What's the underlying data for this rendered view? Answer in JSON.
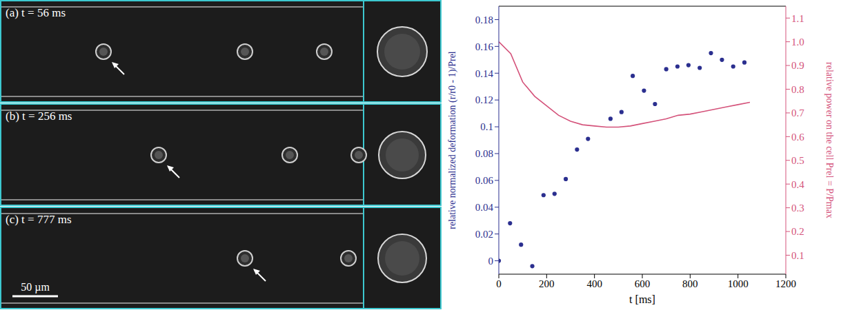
{
  "panels": [
    {
      "label": "(a) t = 56 ms"
    },
    {
      "label": "(b) t = 256 ms"
    },
    {
      "label": "(c) t = 777 ms"
    }
  ],
  "scale_bar": "50 µm",
  "chart_data": {
    "type": "scatter",
    "xlabel": "t [ms]",
    "ylabel": "relative normalized deformation (r/r0 - 1)/Prel",
    "y2label": "relative power on the cell Prel = P/Pmax",
    "xlim": [
      0,
      1200
    ],
    "xticks": [
      0,
      200,
      400,
      600,
      800,
      1000,
      1200
    ],
    "ylim": [
      -0.01,
      0.19
    ],
    "yticks": [
      0,
      0.02,
      0.04,
      0.06,
      0.08,
      0.1,
      0.12,
      0.14,
      0.16,
      0.18
    ],
    "y2lim": [
      0.02,
      1.15
    ],
    "y2ticks": [
      0.1,
      0.2,
      0.3,
      0.4,
      0.5,
      0.6,
      0.7,
      0.8,
      0.9,
      {
        "value": 1,
        "label": "1.0"
      },
      1.1
    ],
    "series": [
      {
        "type": "scatter",
        "color": "#2b2f8f",
        "marker": "circle",
        "x": [
          0,
          47,
          93,
          140,
          187,
          233,
          280,
          327,
          373,
          467,
          513,
          560,
          607,
          653,
          700,
          747,
          793,
          840,
          887,
          933,
          980,
          1027
        ],
        "values": [
          0,
          0.028,
          0.012,
          -0.004,
          0.049,
          0.05,
          0.061,
          0.083,
          0.091,
          0.106,
          0.111,
          0.138,
          0.127,
          0.117,
          0.143,
          0.145,
          0.146,
          0.144,
          0.155,
          0.15,
          0.145,
          0.148
        ]
      },
      {
        "type": "line",
        "axis": "y2",
        "color": "#d4527a",
        "line_style": "solid",
        "x": [
          0,
          50,
          100,
          150,
          200,
          250,
          300,
          350,
          400,
          450,
          500,
          550,
          600,
          650,
          700,
          750,
          800,
          850,
          900,
          950,
          1000,
          1050
        ],
        "values": [
          1.0,
          0.95,
          0.83,
          0.77,
          0.73,
          0.69,
          0.665,
          0.65,
          0.645,
          0.64,
          0.64,
          0.645,
          0.655,
          0.665,
          0.675,
          0.69,
          0.695,
          0.705,
          0.715,
          0.725,
          0.735,
          0.745
        ]
      }
    ]
  }
}
